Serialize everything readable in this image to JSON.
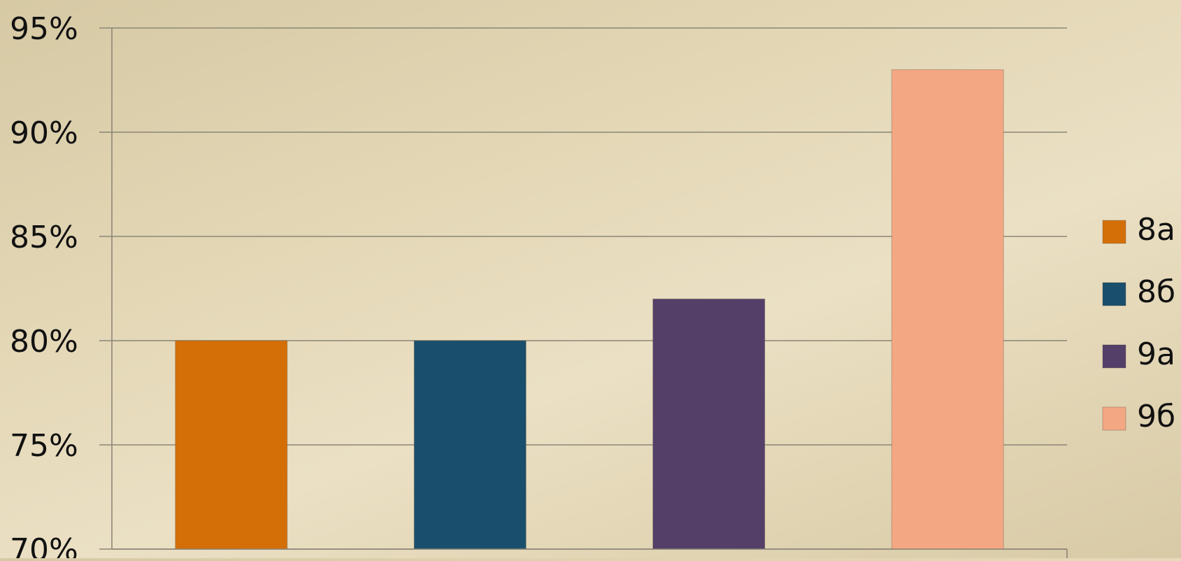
{
  "chart_data": {
    "type": "bar",
    "title": "",
    "xlabel": "",
    "ylabel": "",
    "categories": [
      "8а",
      "8б",
      "9а",
      "9б"
    ],
    "values": [
      80,
      80,
      82,
      93
    ],
    "value_unit": "%",
    "ylim": [
      70,
      95
    ],
    "yticks": [
      70,
      75,
      80,
      85,
      90,
      95
    ],
    "ytick_labels": [
      "70%",
      "75%",
      "80%",
      "85%",
      "90%",
      "95%"
    ],
    "grid": true,
    "legend_position": "right",
    "colors": [
      "#d46f08",
      "#194f6c",
      "#533f68",
      "#f3a783"
    ],
    "grid_color": "#8c8677",
    "axis_color": "#8c8677"
  }
}
